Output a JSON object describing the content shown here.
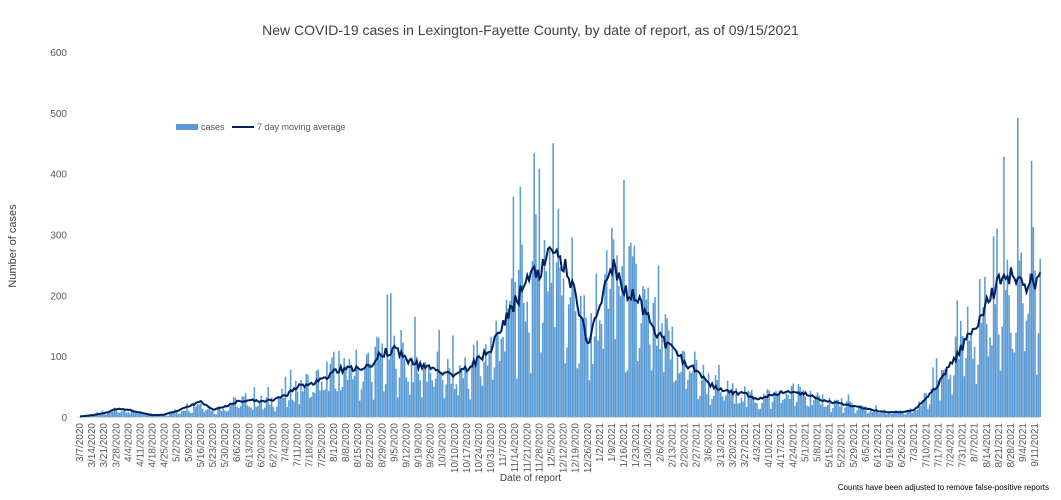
{
  "chart_data": {
    "type": "bar",
    "title": "New COVID-19 cases in Lexington-Fayette County, by date of report, as of 09/15/2021",
    "xlabel": "Date of report",
    "ylabel": "Number of cases",
    "ylim": [
      0,
      600
    ],
    "yticks": [
      0,
      100,
      200,
      300,
      400,
      500,
      600
    ],
    "grid": false,
    "legend_placement": "top-left",
    "note": "Counts have been adjusted to remove false-positive reports",
    "x_tick_labels": [
      "3/7/2020",
      "3/14/2020",
      "3/21/2020",
      "3/28/2020",
      "4/4/2020",
      "4/11/2020",
      "4/18/2020",
      "4/25/2020",
      "5/2/2020",
      "5/9/2020",
      "5/16/2020",
      "5/23/2020",
      "5/30/2020",
      "6/6/2020",
      "6/13/2020",
      "6/20/2020",
      "6/27/2020",
      "7/4/2020",
      "7/11/2020",
      "7/18/2020",
      "7/25/2020",
      "8/1/2020",
      "8/8/2020",
      "8/15/2020",
      "8/22/2020",
      "8/29/2020",
      "9/5/2020",
      "9/12/2020",
      "9/19/2020",
      "9/26/2020",
      "10/3/2020",
      "10/10/2020",
      "10/17/2020",
      "10/24/2020",
      "10/31/2020",
      "11/7/2020",
      "11/14/2020",
      "11/21/2020",
      "11/28/2020",
      "12/5/2020",
      "12/12/2020",
      "12/19/2020",
      "12/26/2020",
      "1/2/2021",
      "1/9/2021",
      "1/16/2021",
      "1/23/2021",
      "1/30/2021",
      "2/6/2021",
      "2/13/2021",
      "2/20/2021",
      "2/27/2021",
      "3/6/2021",
      "3/13/2021",
      "3/20/2021",
      "3/27/2021",
      "4/3/2021",
      "4/10/2021",
      "4/17/2021",
      "4/24/2021",
      "5/1/2021",
      "5/8/2021",
      "5/15/2021",
      "5/22/2021",
      "5/29/2021",
      "6/5/2021",
      "6/12/2021",
      "6/19/2021",
      "6/26/2021",
      "7/3/2021",
      "7/10/2021",
      "7/17/2021",
      "7/24/2021",
      "7/31/2021",
      "8/7/2021",
      "8/14/2021",
      "8/21/2021",
      "8/28/2021",
      "9/4/2021",
      "9/11/2021"
    ],
    "series": [
      {
        "name": "cases",
        "color": "#5b9bd5",
        "resolution": "weekly approximate mean (daily bars)",
        "values": [
          1,
          3,
          6,
          13,
          12,
          7,
          3,
          4,
          10,
          18,
          25,
          12,
          17,
          25,
          28,
          25,
          28,
          35,
          50,
          55,
          60,
          75,
          80,
          78,
          85,
          105,
          110,
          95,
          85,
          80,
          75,
          70,
          80,
          95,
          115,
          150,
          190,
          220,
          240,
          270,
          250,
          200,
          120,
          190,
          250,
          210,
          195,
          160,
          130,
          110,
          90,
          75,
          55,
          45,
          40,
          38,
          30,
          35,
          40,
          40,
          38,
          30,
          25,
          22,
          18,
          14,
          10,
          8,
          8,
          12,
          30,
          55,
          85,
          115,
          150,
          185,
          225,
          230,
          215,
          225
        ]
      },
      {
        "name": "7 day moving average",
        "color": "#002060",
        "values": [
          1,
          3,
          6,
          13,
          12,
          7,
          3,
          4,
          10,
          18,
          25,
          12,
          17,
          25,
          28,
          25,
          28,
          35,
          50,
          55,
          60,
          75,
          80,
          78,
          85,
          105,
          110,
          95,
          85,
          80,
          75,
          70,
          80,
          95,
          115,
          150,
          190,
          220,
          240,
          270,
          250,
          200,
          120,
          190,
          250,
          210,
          195,
          160,
          130,
          110,
          90,
          75,
          55,
          45,
          40,
          38,
          30,
          35,
          40,
          40,
          38,
          30,
          25,
          22,
          18,
          14,
          10,
          8,
          8,
          12,
          30,
          55,
          85,
          115,
          150,
          185,
          225,
          230,
          215,
          225
        ]
      }
    ],
    "notable_peaks": [
      {
        "date": "12/6/2020",
        "value": 450
      },
      {
        "date": "9/1/2021",
        "value": 492
      }
    ]
  }
}
